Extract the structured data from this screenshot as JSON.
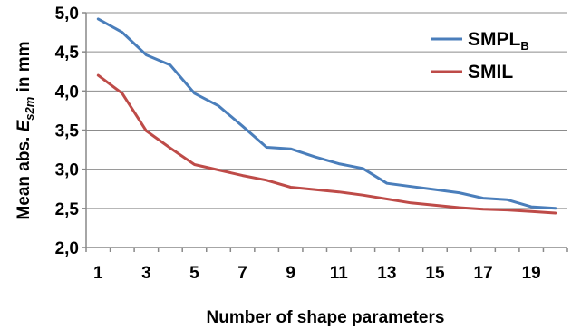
{
  "chart_data": {
    "type": "line",
    "x": [
      1,
      2,
      3,
      4,
      5,
      6,
      7,
      8,
      9,
      10,
      11,
      12,
      13,
      14,
      15,
      16,
      17,
      18,
      19,
      20
    ],
    "x_tick_labels": [
      "1",
      "3",
      "5",
      "7",
      "9",
      "11",
      "13",
      "15",
      "17",
      "19"
    ],
    "y_tick_labels": [
      "2,0",
      "2,5",
      "3,0",
      "3,5",
      "4,0",
      "4,5",
      "5,0"
    ],
    "ylim": [
      2.0,
      5.0
    ],
    "xlabel": "Number of shape parameters",
    "ylabel": {
      "prefix": "Mean abs. ",
      "var": "E",
      "sub": "s2m",
      "suffix": " in mm"
    },
    "grid": "horizontal",
    "legend_position": "top-right",
    "series": [
      {
        "name": "SMPL",
        "name_sub": "B",
        "color": "#4a7ebb",
        "values": [
          4.92,
          4.75,
          4.46,
          4.33,
          3.97,
          3.81,
          3.55,
          3.28,
          3.26,
          3.16,
          3.07,
          3.01,
          2.82,
          2.78,
          2.74,
          2.7,
          2.63,
          2.61,
          2.52,
          2.5
        ]
      },
      {
        "name": "SMIL",
        "color": "#be4b48",
        "values": [
          4.2,
          3.97,
          3.49,
          3.27,
          3.06,
          2.99,
          2.92,
          2.86,
          2.77,
          2.74,
          2.71,
          2.67,
          2.62,
          2.57,
          2.54,
          2.51,
          2.49,
          2.48,
          2.46,
          2.44
        ]
      }
    ]
  }
}
